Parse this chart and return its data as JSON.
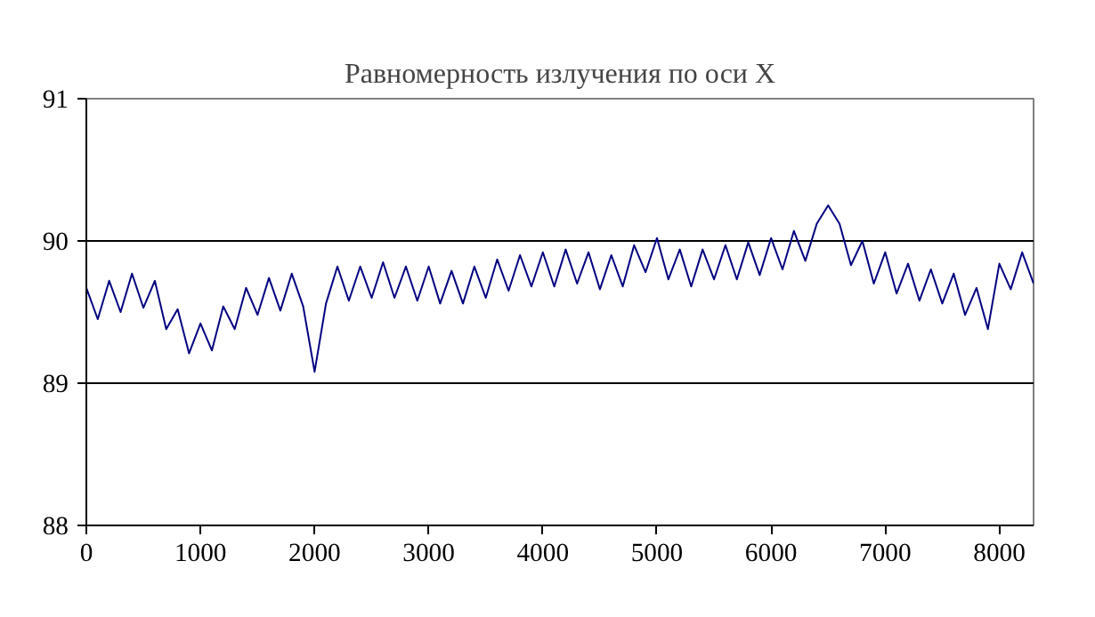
{
  "chart_data": {
    "type": "line",
    "title": "Равномерность излучения по оси X",
    "x": [
      0,
      100,
      200,
      300,
      400,
      500,
      600,
      700,
      800,
      900,
      1000,
      1100,
      1200,
      1300,
      1400,
      1500,
      1600,
      1700,
      1800,
      1900,
      2000,
      2100,
      2200,
      2300,
      2400,
      2500,
      2600,
      2700,
      2800,
      2900,
      3000,
      3100,
      3200,
      3300,
      3400,
      3500,
      3600,
      3700,
      3800,
      3900,
      4000,
      4100,
      4200,
      4300,
      4400,
      4500,
      4600,
      4700,
      4800,
      4900,
      5000,
      5100,
      5200,
      5300,
      5400,
      5500,
      5600,
      5700,
      5800,
      5900,
      6000,
      6100,
      6200,
      6300,
      6400,
      6500,
      6600,
      6700,
      6800,
      6900,
      7000,
      7100,
      7200,
      7300,
      7400,
      7500,
      7600,
      7700,
      7800,
      7900,
      8000,
      8100,
      8200,
      8300
    ],
    "series": [
      {
        "color": "#000080",
        "values": [
          89.67,
          89.45,
          89.72,
          89.5,
          89.77,
          89.53,
          89.72,
          89.38,
          89.52,
          89.21,
          89.42,
          89.23,
          89.54,
          89.38,
          89.67,
          89.48,
          89.74,
          89.51,
          89.77,
          89.54,
          89.08,
          89.56,
          89.82,
          89.58,
          89.82,
          89.6,
          89.85,
          89.6,
          89.82,
          89.58,
          89.82,
          89.56,
          89.79,
          89.56,
          89.82,
          89.6,
          89.87,
          89.65,
          89.9,
          89.68,
          89.92,
          89.68,
          89.94,
          89.7,
          89.92,
          89.66,
          89.9,
          89.68,
          89.97,
          89.78,
          90.02,
          89.73,
          89.94,
          89.68,
          89.94,
          89.73,
          89.97,
          89.73,
          89.99,
          89.76,
          90.02,
          89.8,
          90.07,
          89.86,
          90.12,
          90.25,
          90.12,
          89.83,
          90.0,
          89.7,
          89.92,
          89.63,
          89.84,
          89.58,
          89.8,
          89.56,
          89.77,
          89.48,
          89.67,
          89.38,
          89.84,
          89.66,
          89.92,
          89.7
        ]
      }
    ],
    "xlim": [
      0,
      8300
    ],
    "ylim": [
      88,
      91
    ],
    "xticks": [
      0,
      1000,
      2000,
      3000,
      4000,
      5000,
      6000,
      7000,
      8000
    ],
    "yticks": [
      88,
      89,
      90,
      91
    ],
    "grid": "y",
    "line_style": "solid",
    "marker": "none"
  }
}
